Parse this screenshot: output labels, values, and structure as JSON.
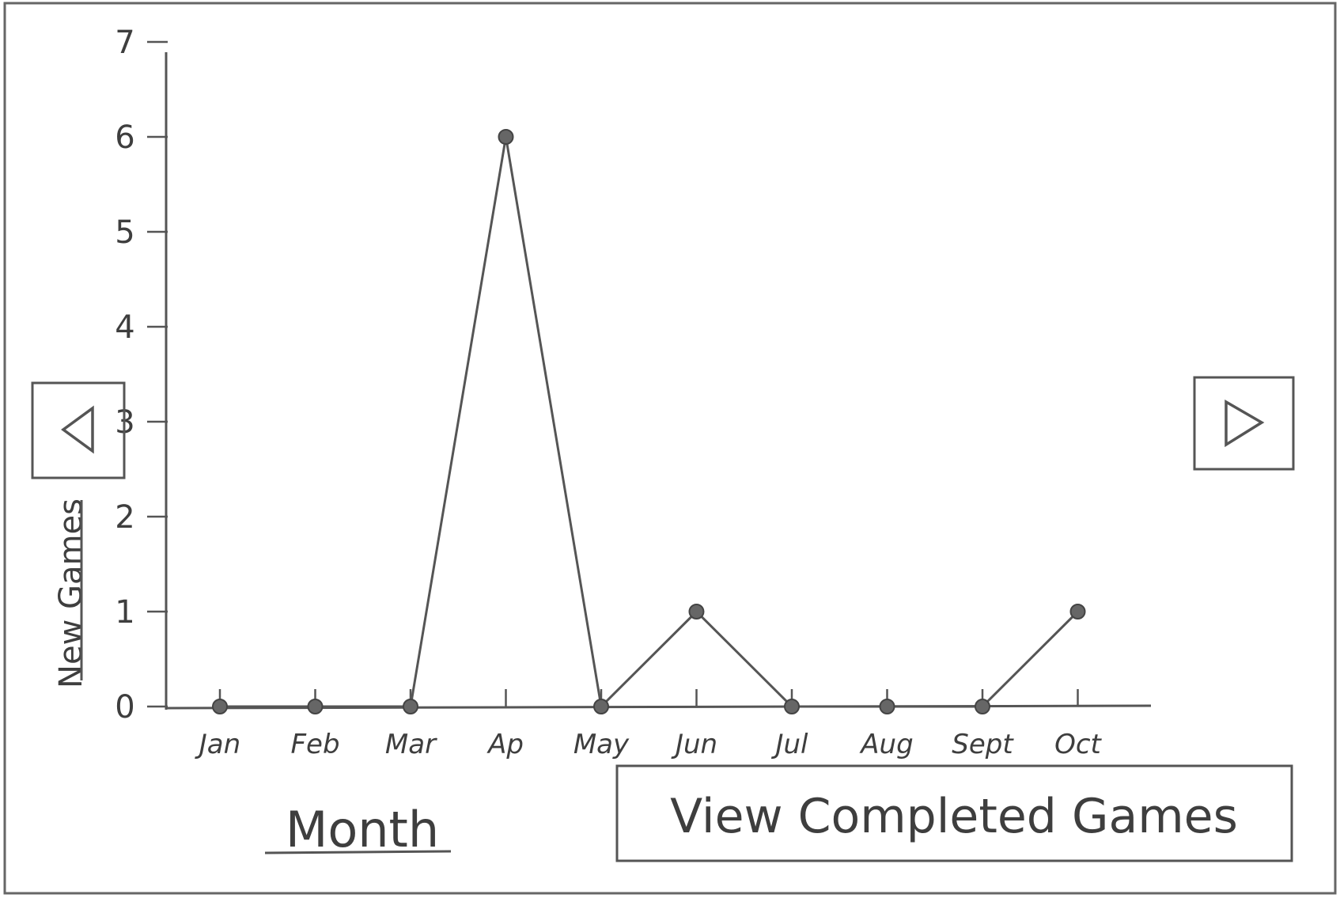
{
  "nav": {
    "prev_icon": "triangle-left-icon",
    "next_icon": "triangle-right-icon"
  },
  "view_button_label": "View Completed Games",
  "chart_data": {
    "type": "line",
    "categories": [
      "Jan",
      "Feb",
      "Mar",
      "Ap",
      "May",
      "Jun",
      "Jul",
      "Aug",
      "Sept",
      "Oct"
    ],
    "series": [
      {
        "values": [
          0,
          0,
          0,
          6,
          0,
          1,
          0,
          0,
          0,
          1
        ]
      }
    ],
    "y_ticks": [
      "0",
      "1",
      "2",
      "3",
      "4",
      "5",
      "6",
      "7"
    ],
    "xlabel": "Month",
    "ylabel": "New Games",
    "ylim": [
      0,
      7
    ],
    "grid": false,
    "legend": "none"
  }
}
